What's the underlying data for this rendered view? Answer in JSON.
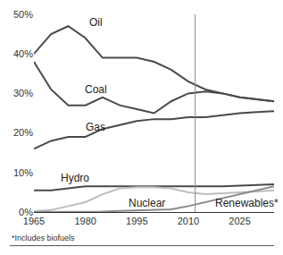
{
  "chart_data": {
    "type": "line",
    "x": [
      1965,
      1970,
      1975,
      1980,
      1985,
      1990,
      1995,
      2000,
      2005,
      2010,
      2015,
      2020,
      2025,
      2030,
      2035
    ],
    "series": [
      {
        "name": "Oil",
        "color": "#4a4a4a",
        "values": [
          40,
          45,
          47,
          44,
          39,
          39,
          39,
          38,
          36,
          33,
          31,
          30,
          29,
          28.5,
          28
        ]
      },
      {
        "name": "Coal",
        "color": "#4a4a4a",
        "values": [
          38,
          31,
          27,
          27,
          29,
          27,
          26,
          25,
          28,
          30,
          30.5,
          30,
          29,
          28.5,
          28
        ]
      },
      {
        "name": "Gas",
        "color": "#4a4a4a",
        "values": [
          16,
          18,
          19,
          19,
          21,
          22,
          23,
          23.5,
          23.5,
          24,
          24,
          24.5,
          25,
          25.3,
          25.5
        ]
      },
      {
        "name": "Hydro",
        "color": "#4a4a4a",
        "values": [
          5.5,
          5.5,
          6,
          6.5,
          6.5,
          6.5,
          6.5,
          6.5,
          6.5,
          6.5,
          6.5,
          6.5,
          6.7,
          6.8,
          7
        ]
      },
      {
        "name": "Nuclear",
        "color": "#bdbdbd",
        "values": [
          0.2,
          0.5,
          1.5,
          2.5,
          4.5,
          6,
          6.3,
          6.3,
          6,
          5,
          4.5,
          4.7,
          5,
          5.2,
          5.5
        ]
      },
      {
        "name": "Renewables*",
        "color": "#8a8a8a",
        "values": [
          0,
          0,
          0,
          0,
          0.1,
          0.3,
          0.4,
          0.5,
          0.7,
          1.5,
          2.5,
          3.5,
          4.5,
          5.5,
          6.5
        ]
      }
    ],
    "xlim": [
      1965,
      2035
    ],
    "xticks": [
      1965,
      1980,
      1995,
      2010,
      2025
    ],
    "ylim": [
      0,
      50
    ],
    "yticks": [
      {
        "value": 0,
        "label": "0%"
      },
      {
        "value": 10,
        "label": "10%"
      },
      {
        "value": 20,
        "label": "20%"
      },
      {
        "value": 30,
        "label": "30%"
      },
      {
        "value": 40,
        "label": "40%"
      },
      {
        "value": 50,
        "label": "50%"
      }
    ],
    "vline": 2012,
    "annotations": [
      {
        "text": "Oil",
        "x": 1983,
        "y": 48
      },
      {
        "text": "Coal",
        "x": 1983,
        "y": 31
      },
      {
        "text": "Gas",
        "x": 1983,
        "y": 21.5
      },
      {
        "text": "Hydro",
        "x": 1977,
        "y": 8.5
      },
      {
        "text": "Nuclear",
        "x": 1998,
        "y": 2.2
      },
      {
        "text": "Renewables*",
        "x": 2027,
        "y": 2.2
      }
    ],
    "footnote": "*Includes biofuels",
    "grid": false
  }
}
